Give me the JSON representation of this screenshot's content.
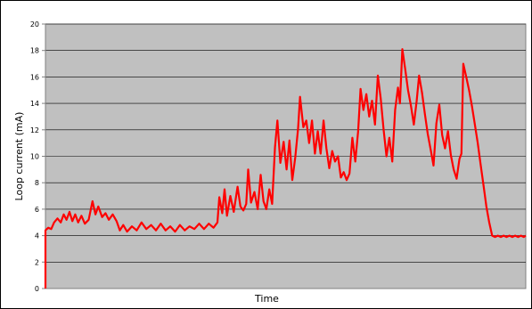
{
  "chart_data": {
    "type": "line",
    "title": "",
    "xlabel": "Time",
    "ylabel": "Loop current (mA)",
    "ylim": [
      0,
      20
    ],
    "yticks": [
      "0",
      "2",
      "4",
      "6",
      "8",
      "10",
      "12",
      "14",
      "16",
      "18",
      "20"
    ],
    "grid": true,
    "plot_background": "#c0c0c0",
    "series": [
      {
        "color": "#ff0000",
        "points": [
          [
            0.0,
            0.0
          ],
          [
            0.0,
            4.4
          ],
          [
            0.6,
            4.6
          ],
          [
            1.2,
            4.5
          ],
          [
            1.8,
            5.0
          ],
          [
            2.5,
            5.3
          ],
          [
            3.2,
            5.0
          ],
          [
            3.8,
            5.6
          ],
          [
            4.4,
            5.2
          ],
          [
            5.0,
            5.8
          ],
          [
            5.6,
            5.1
          ],
          [
            6.2,
            5.6
          ],
          [
            6.8,
            5.0
          ],
          [
            7.5,
            5.5
          ],
          [
            8.2,
            4.9
          ],
          [
            9.0,
            5.2
          ],
          [
            9.8,
            6.6
          ],
          [
            10.4,
            5.6
          ],
          [
            11.0,
            6.2
          ],
          [
            11.8,
            5.4
          ],
          [
            12.5,
            5.7
          ],
          [
            13.2,
            5.2
          ],
          [
            14.0,
            5.6
          ],
          [
            14.8,
            5.1
          ],
          [
            15.5,
            4.4
          ],
          [
            16.2,
            4.8
          ],
          [
            17.0,
            4.3
          ],
          [
            18.0,
            4.7
          ],
          [
            19.0,
            4.4
          ],
          [
            20.0,
            5.0
          ],
          [
            21.0,
            4.5
          ],
          [
            22.0,
            4.8
          ],
          [
            23.0,
            4.4
          ],
          [
            24.0,
            4.9
          ],
          [
            25.0,
            4.4
          ],
          [
            26.0,
            4.7
          ],
          [
            27.0,
            4.3
          ],
          [
            28.0,
            4.8
          ],
          [
            29.0,
            4.4
          ],
          [
            30.0,
            4.7
          ],
          [
            31.0,
            4.5
          ],
          [
            32.0,
            4.9
          ],
          [
            33.0,
            4.5
          ],
          [
            34.0,
            4.9
          ],
          [
            35.0,
            4.6
          ],
          [
            35.8,
            5.0
          ],
          [
            36.2,
            6.9
          ],
          [
            36.8,
            5.7
          ],
          [
            37.3,
            7.5
          ],
          [
            37.8,
            5.5
          ],
          [
            38.5,
            7.0
          ],
          [
            39.2,
            5.8
          ],
          [
            40.0,
            7.7
          ],
          [
            40.6,
            6.2
          ],
          [
            41.2,
            5.9
          ],
          [
            41.8,
            6.4
          ],
          [
            42.2,
            9.0
          ],
          [
            42.8,
            6.5
          ],
          [
            43.5,
            7.3
          ],
          [
            44.2,
            6.0
          ],
          [
            44.8,
            8.6
          ],
          [
            45.4,
            6.6
          ],
          [
            46.0,
            6.0
          ],
          [
            46.6,
            7.5
          ],
          [
            47.2,
            6.4
          ],
          [
            47.8,
            10.7
          ],
          [
            48.3,
            12.7
          ],
          [
            48.9,
            9.5
          ],
          [
            49.6,
            11.1
          ],
          [
            50.2,
            9.0
          ],
          [
            50.8,
            11.2
          ],
          [
            51.4,
            8.2
          ],
          [
            52.0,
            9.9
          ],
          [
            52.6,
            12.1
          ],
          [
            53.0,
            14.5
          ],
          [
            53.7,
            12.2
          ],
          [
            54.3,
            12.7
          ],
          [
            54.9,
            11.0
          ],
          [
            55.5,
            12.7
          ],
          [
            56.1,
            10.2
          ],
          [
            56.7,
            11.9
          ],
          [
            57.3,
            10.2
          ],
          [
            57.9,
            12.7
          ],
          [
            58.5,
            10.6
          ],
          [
            59.1,
            9.1
          ],
          [
            59.7,
            10.4
          ],
          [
            60.3,
            9.6
          ],
          [
            60.9,
            10.0
          ],
          [
            61.5,
            8.4
          ],
          [
            62.1,
            8.8
          ],
          [
            62.7,
            8.2
          ],
          [
            63.3,
            8.7
          ],
          [
            63.9,
            11.4
          ],
          [
            64.5,
            9.6
          ],
          [
            65.1,
            11.9
          ],
          [
            65.6,
            15.1
          ],
          [
            66.2,
            13.5
          ],
          [
            66.8,
            14.7
          ],
          [
            67.4,
            13.0
          ],
          [
            68.0,
            14.2
          ],
          [
            68.6,
            12.4
          ],
          [
            69.2,
            16.1
          ],
          [
            69.8,
            14.4
          ],
          [
            70.4,
            12.0
          ],
          [
            71.0,
            10.0
          ],
          [
            71.6,
            11.4
          ],
          [
            72.2,
            9.6
          ],
          [
            72.8,
            13.5
          ],
          [
            73.4,
            15.2
          ],
          [
            73.8,
            14.0
          ],
          [
            74.3,
            18.1
          ],
          [
            74.9,
            16.6
          ],
          [
            75.5,
            15.0
          ],
          [
            76.1,
            13.8
          ],
          [
            76.7,
            12.4
          ],
          [
            77.3,
            14.2
          ],
          [
            77.8,
            16.1
          ],
          [
            78.4,
            14.8
          ],
          [
            79.0,
            13.2
          ],
          [
            79.6,
            11.7
          ],
          [
            80.2,
            10.5
          ],
          [
            80.8,
            9.3
          ],
          [
            81.4,
            12.5
          ],
          [
            82.0,
            13.9
          ],
          [
            82.6,
            11.6
          ],
          [
            83.2,
            10.6
          ],
          [
            83.8,
            11.9
          ],
          [
            84.4,
            10.1
          ],
          [
            85.0,
            9.0
          ],
          [
            85.6,
            8.3
          ],
          [
            86.2,
            9.8
          ],
          [
            86.6,
            10.2
          ],
          [
            87.0,
            17.0
          ],
          [
            87.6,
            16.0
          ],
          [
            88.2,
            15.0
          ],
          [
            88.8,
            13.8
          ],
          [
            89.4,
            12.4
          ],
          [
            90.0,
            11.0
          ],
          [
            90.6,
            9.4
          ],
          [
            91.2,
            7.8
          ],
          [
            91.8,
            6.2
          ],
          [
            92.4,
            5.0
          ],
          [
            93.0,
            4.0
          ],
          [
            93.6,
            3.9
          ],
          [
            94.2,
            4.0
          ],
          [
            94.8,
            3.9
          ],
          [
            95.4,
            4.0
          ],
          [
            96.0,
            3.9
          ],
          [
            96.6,
            4.0
          ],
          [
            97.2,
            3.9
          ],
          [
            97.8,
            4.0
          ],
          [
            98.4,
            3.9
          ],
          [
            99.0,
            4.0
          ],
          [
            99.6,
            3.9
          ],
          [
            100.0,
            4.0
          ]
        ]
      }
    ]
  }
}
